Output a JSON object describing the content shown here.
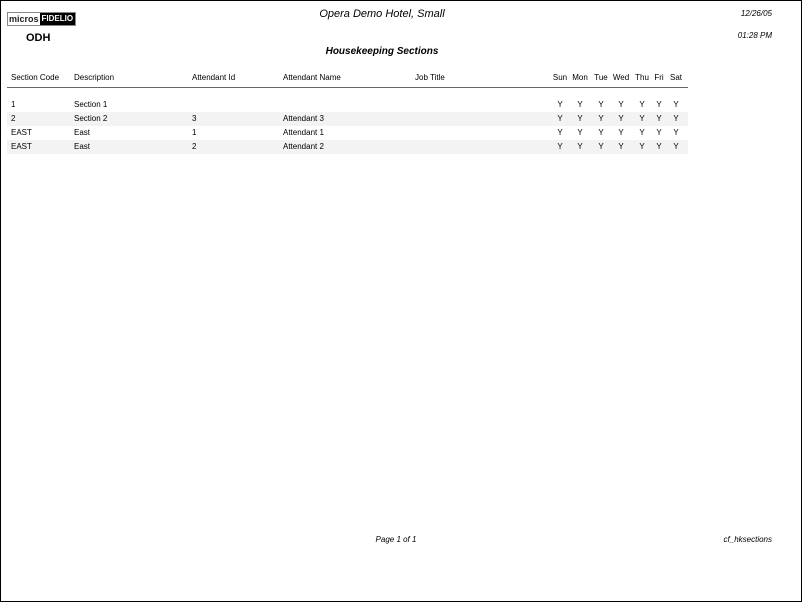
{
  "header": {
    "logo": {
      "left": "micros",
      "right": "FIDELIO"
    },
    "hotel": "Opera Demo Hotel, Small",
    "date": "12/26/05",
    "time": "01:28 PM",
    "property": "ODH",
    "title": "Housekeeping Sections"
  },
  "columns": [
    "Section Code",
    "Description",
    "Attendant Id",
    "Attendant Name",
    "Job Title",
    "Sun",
    "Mon",
    "Tue",
    "Wed",
    "Thu",
    "Fri",
    "Sat"
  ],
  "rows": [
    [
      "1",
      "Section 1",
      "",
      "",
      "",
      "Y",
      "Y",
      "Y",
      "Y",
      "Y",
      "Y",
      "Y"
    ],
    [
      "2",
      "Section 2",
      "3",
      "Attendant 3",
      "",
      "Y",
      "Y",
      "Y",
      "Y",
      "Y",
      "Y",
      "Y"
    ],
    [
      "EAST",
      "East",
      "1",
      "Attendant 1",
      "",
      "Y",
      "Y",
      "Y",
      "Y",
      "Y",
      "Y",
      "Y"
    ],
    [
      "EAST",
      "East",
      "2",
      "Attendant 2",
      "",
      "Y",
      "Y",
      "Y",
      "Y",
      "Y",
      "Y",
      "Y"
    ]
  ],
  "footer": {
    "page": "Page 1 of 1",
    "report": "cf_hksections"
  }
}
